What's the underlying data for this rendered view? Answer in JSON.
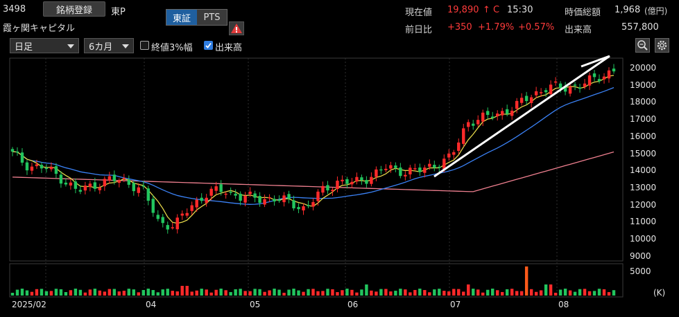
{
  "header": {
    "code": "3498",
    "register_label": "銘柄登録",
    "market": "東P",
    "name": "霞ヶ関キャピタル",
    "tab_tse": "東証",
    "tab_pts": "PTS",
    "current_price_label": "現在値",
    "current_price": "19,890",
    "price_mark": "↑ C",
    "time": "15:30",
    "market_cap_label": "時価総額",
    "market_cap": "1,968",
    "market_cap_unit": "(億円)",
    "change_label": "前日比",
    "change": "+350",
    "change_pct": "+1.79%",
    "change_pct2": "+0.57%",
    "volume_label": "出来高",
    "volume": "557,800"
  },
  "toolbar": {
    "interval": "日足",
    "period": "6カ月",
    "close3_label": "終値3%幅",
    "close3_checked": false,
    "volume_label": "出来高",
    "volume_checked": true
  },
  "colors": {
    "up": "#ff2a2a",
    "down": "#22c55e",
    "ma_short": "#e6d84a",
    "ma_mid": "#3b82f6",
    "ma_long": "#f08090",
    "trend": "#ffffff"
  },
  "chart_data": {
    "type": "candlestick",
    "price_axis": {
      "ticks": [
        "20000",
        "19000",
        "18000",
        "17000",
        "16000",
        "15000",
        "14000",
        "13000",
        "12000",
        "11000",
        "10000",
        "9000"
      ],
      "range": [
        8700,
        20400
      ]
    },
    "volume_axis": {
      "ticks": [
        "5000"
      ],
      "unit": "(K)"
    },
    "x_ticks": [
      "2025/02",
      "04",
      "05",
      "06",
      "07",
      "08"
    ],
    "closes_weekly_approx": [
      15000,
      14300,
      14200,
      13600,
      12800,
      13200,
      13500,
      13400,
      12900,
      11000,
      10800,
      12000,
      12700,
      12900,
      12500,
      12400,
      12400,
      12200,
      11800,
      12800,
      13400,
      13300,
      13700,
      14200,
      14000,
      14000,
      14400,
      14800,
      16900,
      17100,
      17400,
      17800,
      18500,
      18900,
      18900,
      19000,
      19500,
      19890
    ],
    "trend_line": {
      "from": [
        13500,
        "06/末"
      ],
      "to": [
        20300,
        "08/末"
      ]
    }
  }
}
